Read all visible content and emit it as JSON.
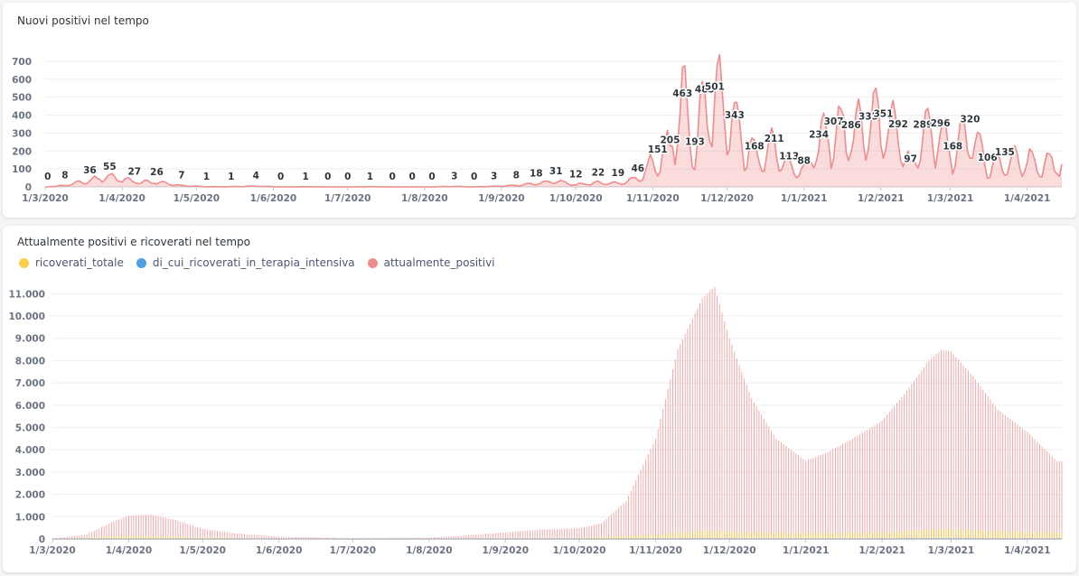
{
  "card1": {
    "title": "Nuovi positivi nel tempo"
  },
  "card2": {
    "title": "Attualmente positivi e ricoverati nel tempo",
    "legend": [
      {
        "label": "ricoverati_totale",
        "color": "#f9cf48"
      },
      {
        "label": "di_cui_ricoverati_in_terapia_intensiva",
        "color": "#509ee3"
      },
      {
        "label": "attualmente_positivi",
        "color": "#ef8c8c"
      }
    ]
  },
  "chart_data": [
    {
      "type": "area",
      "title": "Nuovi positivi nel tempo",
      "xlabel": "",
      "ylabel": "",
      "ylim": [
        0,
        760
      ],
      "y_ticks": [
        "0",
        "100",
        "200",
        "300",
        "400",
        "500",
        "600",
        "700"
      ],
      "x_ticks": [
        "1/3/2020",
        "1/4/2020",
        "1/5/2020",
        "1/6/2020",
        "1/7/2020",
        "1/8/2020",
        "1/9/2020",
        "1/10/2020",
        "1/11/2020",
        "1/12/2020",
        "1/1/2021",
        "1/2/2021",
        "1/3/2021",
        "1/4/2021"
      ],
      "color": "#ef8c8c",
      "grid": true,
      "series": [
        {
          "x": [
            "2/3/2020",
            "9/3/2020",
            "19/3/2020",
            "27/3/2020",
            "6/4/2020",
            "15/4/2020",
            "25/4/2020",
            "5/5/2020",
            "15/5/2020",
            "25/5/2020",
            "4/6/2020",
            "14/6/2020",
            "23/6/2020",
            "1/7/2020",
            "10/7/2020",
            "19/7/2020",
            "27/7/2020",
            "4/8/2020",
            "13/8/2020",
            "21/8/2020",
            "29/8/2020",
            "7/9/2020",
            "15/9/2020",
            "23/9/2020",
            "1/10/2020",
            "10/10/2020",
            "18/10/2020",
            "26/10/2020",
            "3/11/2020",
            "8/11/2020",
            "13/11/2020",
            "18/11/2020",
            "22/11/2020",
            "26/11/2020",
            "4/12/2020",
            "12/12/2020",
            "20/12/2020",
            "26/12/2020",
            "1/1/2021",
            "7/1/2021",
            "13/1/2021",
            "20/1/2021",
            "27/1/2021",
            "2/2/2021",
            "8/2/2021",
            "13/2/2021",
            "18/2/2021",
            "25/2/2021",
            "2/3/2021",
            "9/3/2021",
            "16/3/2021",
            "23/3/2021",
            "30/3/2021",
            "6/4/2021",
            "12/4/2021"
          ],
          "values": [
            0,
            8,
            36,
            55,
            27,
            26,
            7,
            1,
            1,
            4,
            0,
            1,
            0,
            0,
            1,
            0,
            0,
            0,
            3,
            0,
            3,
            8,
            18,
            31,
            12,
            22,
            19,
            46,
            151,
            205,
            463,
            193,
            485,
            501,
            343,
            168,
            211,
            113,
            88,
            234,
            307,
            286,
            335,
            351,
            292,
            97,
            289,
            296,
            168,
            320,
            106,
            135,
            150,
            120,
            130
          ],
          "labels": [
            "0",
            "8",
            "36",
            "55",
            "27",
            "26",
            "7",
            "1",
            "1",
            "4",
            "0",
            "1",
            "0",
            "0",
            "1",
            "0",
            "0",
            "0",
            "3",
            "0",
            "3",
            "8",
            "18",
            "31",
            "12",
            "22",
            "19",
            "46",
            "151",
            "205",
            "463",
            "193",
            "485",
            "501",
            "343",
            "168",
            "211",
            "113",
            "88",
            "234",
            "307",
            "286",
            "335",
            "351",
            "292",
            "97",
            "289",
            "296",
            "168",
            "320",
            "106",
            "135",
            "",
            "",
            ""
          ]
        }
      ]
    },
    {
      "type": "bar",
      "title": "Attualmente positivi e ricoverati nel tempo",
      "xlabel": "",
      "ylabel": "",
      "ylim": [
        0,
        11500
      ],
      "y_ticks": [
        "0",
        "1.000",
        "2.000",
        "3.000",
        "4.000",
        "5.000",
        "6.000",
        "7.000",
        "8.000",
        "9.000",
        "10.000",
        "11.000"
      ],
      "x_ticks": [
        "1/3/2020",
        "1/4/2020",
        "1/5/2020",
        "1/6/2020",
        "1/7/2020",
        "1/8/2020",
        "1/9/2020",
        "1/10/2020",
        "1/11/2020",
        "1/12/2020",
        "1/1/2021",
        "1/2/2021",
        "1/3/2021",
        "1/4/2021"
      ],
      "grid": true,
      "series": [
        {
          "name": "attualmente_positivi",
          "color": "#ef8c8c",
          "x": [
            "1/3/2020",
            "15/3/2020",
            "25/3/2020",
            "1/4/2020",
            "10/4/2020",
            "20/4/2020",
            "1/5/2020",
            "15/5/2020",
            "1/6/2020",
            "1/7/2020",
            "1/8/2020",
            "15/8/2020",
            "1/9/2020",
            "15/9/2020",
            "1/10/2020",
            "10/10/2020",
            "20/10/2020",
            "1/11/2020",
            "10/11/2020",
            "20/11/2020",
            "25/11/2020",
            "1/12/2020",
            "10/12/2020",
            "20/12/2020",
            "1/1/2021",
            "10/1/2021",
            "20/1/2021",
            "1/2/2021",
            "10/2/2021",
            "20/2/2021",
            "25/2/2021",
            "1/3/2021",
            "10/3/2021",
            "20/3/2021",
            "1/4/2021",
            "13/4/2021"
          ],
          "values": [
            20,
            200,
            750,
            1050,
            1100,
            850,
            450,
            250,
            100,
            40,
            60,
            150,
            300,
            420,
            480,
            700,
            1700,
            4500,
            8500,
            10800,
            11300,
            9000,
            6300,
            4500,
            3500,
            3900,
            4500,
            5300,
            6500,
            8000,
            8500,
            8400,
            7300,
            5800,
            4800,
            3500
          ]
        },
        {
          "name": "ricoverati_totale",
          "color": "#f9cf48",
          "x": [
            "1/3/2020",
            "1/4/2020",
            "15/4/2020",
            "1/5/2020",
            "1/6/2020",
            "1/9/2020",
            "1/10/2020",
            "1/11/2020",
            "20/11/2020",
            "1/12/2020",
            "1/1/2021",
            "1/2/2021",
            "25/2/2021",
            "1/3/2021",
            "1/4/2021",
            "13/4/2021"
          ],
          "values": [
            0,
            150,
            120,
            60,
            10,
            10,
            40,
            200,
            380,
            330,
            250,
            300,
            450,
            430,
            320,
            280
          ]
        },
        {
          "name": "di_cui_ricoverati_in_terapia_intensiva",
          "color": "#509ee3",
          "x": [
            "1/3/2020",
            "1/4/2020",
            "1/5/2020",
            "1/10/2020",
            "20/11/2020",
            "1/1/2021",
            "25/2/2021",
            "1/4/2021",
            "13/4/2021"
          ],
          "values": [
            0,
            20,
            10,
            5,
            40,
            25,
            45,
            35,
            30
          ]
        }
      ]
    }
  ]
}
